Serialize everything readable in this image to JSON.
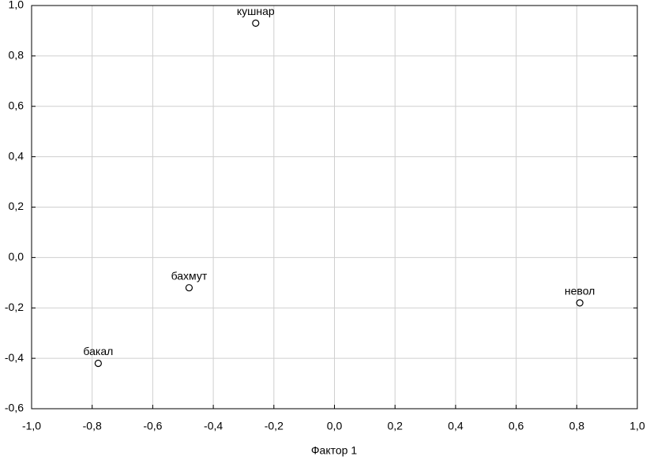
{
  "chart_data": {
    "type": "scatter",
    "x_label": "Фактор 1",
    "x": [
      -0.26,
      -0.48,
      -0.78,
      0.81
    ],
    "values": [
      0.93,
      -0.12,
      -0.42,
      -0.18
    ],
    "point_labels": [
      "кушнар",
      "бахмут",
      "бакал",
      "невол"
    ],
    "color": "#000000",
    "xlim": [
      -1.0,
      1.0
    ],
    "ylim": [
      -0.6,
      1.0
    ],
    "xticks": [
      {
        "value": -1.0,
        "label": "-1,0"
      },
      {
        "value": -0.8,
        "label": "-0,8"
      },
      {
        "value": -0.6,
        "label": "-0,6"
      },
      {
        "value": -0.4,
        "label": "-0,4"
      },
      {
        "value": -0.2,
        "label": "-0,2"
      },
      {
        "value": 0.0,
        "label": "0,0"
      },
      {
        "value": 0.2,
        "label": "0,2"
      },
      {
        "value": 0.4,
        "label": "0,4"
      },
      {
        "value": 0.6,
        "label": "0,6"
      },
      {
        "value": 0.8,
        "label": "0,8"
      },
      {
        "value": 1.0,
        "label": "1,0"
      }
    ],
    "yticks": [
      {
        "value": -0.6,
        "label": "-0,6"
      },
      {
        "value": -0.4,
        "label": "-0,4"
      },
      {
        "value": -0.2,
        "label": "-0,2"
      },
      {
        "value": 0.0,
        "label": "0,0"
      },
      {
        "value": 0.2,
        "label": "0,2"
      },
      {
        "value": 0.4,
        "label": "0,4"
      },
      {
        "value": 0.6,
        "label": "0,6"
      },
      {
        "value": 0.8,
        "label": "0,8"
      },
      {
        "value": 1.0,
        "label": "1,0"
      }
    ],
    "grid": true
  }
}
